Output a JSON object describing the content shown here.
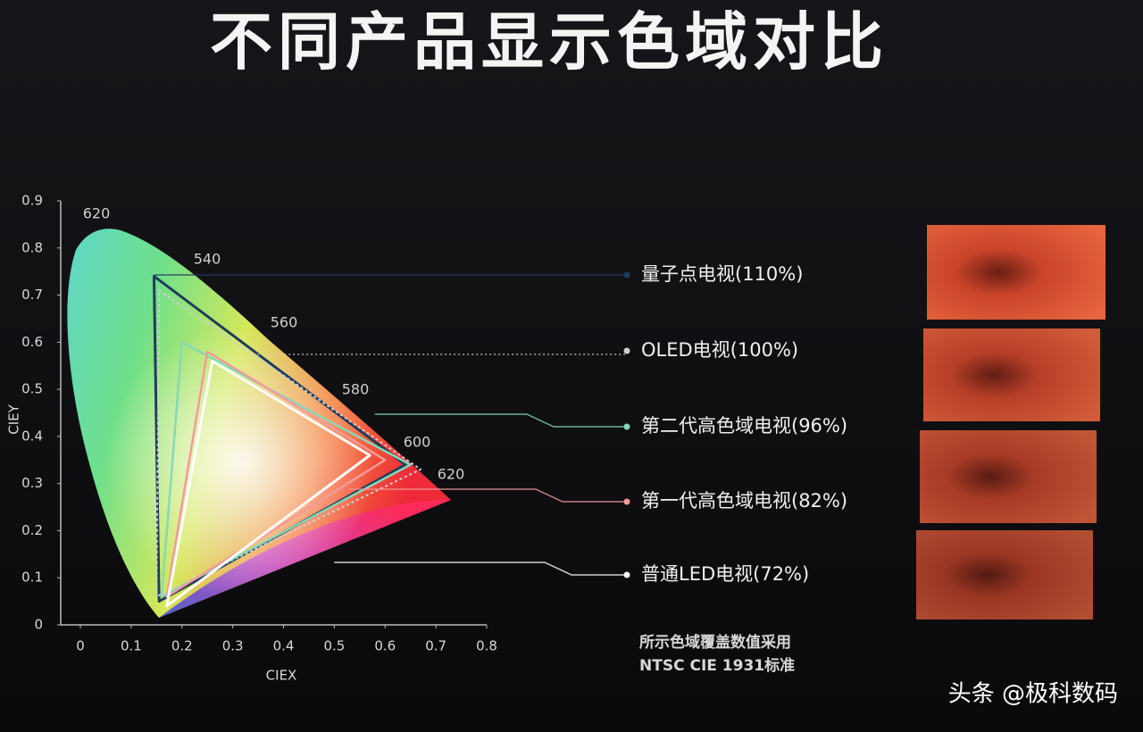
{
  "chart_data": {
    "type": "chromaticity",
    "title": "不同产品显示色域对比",
    "xlabel": "CIEX",
    "ylabel": "CIEY",
    "xlim": [
      0,
      0.8
    ],
    "ylim": [
      0,
      0.9
    ],
    "xticks": [
      0,
      0.1,
      0.2,
      0.3,
      0.4,
      0.5,
      0.6,
      0.7,
      0.8
    ],
    "yticks": [
      0,
      0.1,
      0.2,
      0.3,
      0.4,
      0.5,
      0.6,
      0.7,
      0.8,
      0.9
    ],
    "wavelength_labels": [
      "620",
      "540",
      "560",
      "580",
      "600",
      "620"
    ],
    "series": [
      {
        "name": "量子点电视(110%)",
        "color": "#1f3d5c",
        "x": [
          0.145,
          0.64,
          0.155
        ],
        "y": [
          0.74,
          0.34,
          0.05
        ]
      },
      {
        "name": "OLED电视(100%)",
        "color": "#cfcfcf",
        "x": [
          0.155,
          0.67,
          0.15
        ],
        "y": [
          0.71,
          0.33,
          0.06
        ]
      },
      {
        "name": "第二代高色域电视(96%)",
        "color": "#86d8b8",
        "x": [
          0.2,
          0.65,
          0.16
        ],
        "y": [
          0.6,
          0.34,
          0.06
        ]
      },
      {
        "name": "第一代高色域电视(82%)",
        "color": "#f39a9a",
        "x": [
          0.25,
          0.6,
          0.17
        ],
        "y": [
          0.58,
          0.35,
          0.06
        ]
      },
      {
        "name": "普通LED电视(72%)",
        "color": "#ffffff",
        "x": [
          0.26,
          0.57,
          0.17
        ],
        "y": [
          0.56,
          0.36,
          0.04
        ]
      }
    ],
    "note": [
      "所示色域覆盖数值采用",
      "NTSC CIE  1931标准"
    ],
    "watermark": "头条 @极科数码"
  }
}
